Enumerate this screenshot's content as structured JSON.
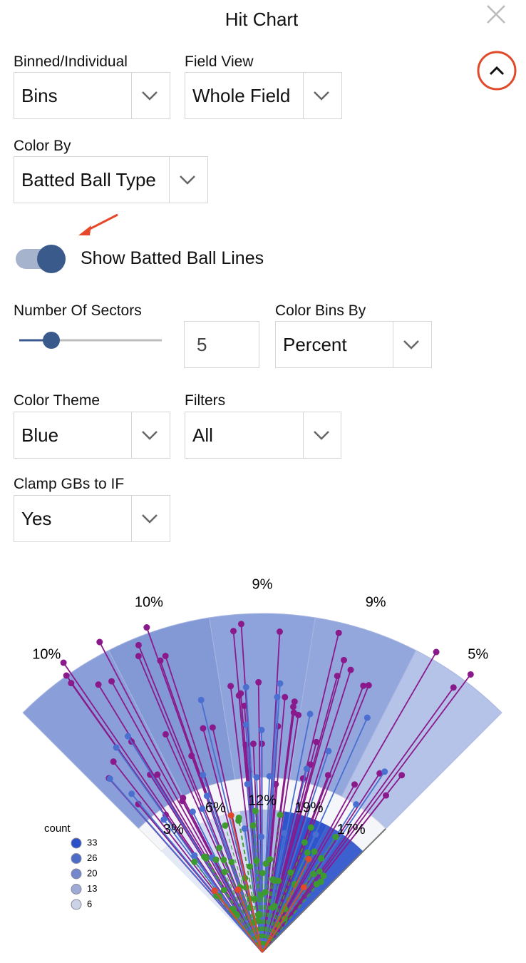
{
  "header": {
    "title": "Hit Chart"
  },
  "controls": {
    "binned": {
      "label": "Binned/Individual",
      "value": "Bins"
    },
    "field_view": {
      "label": "Field View",
      "value": "Whole Field"
    },
    "color_by": {
      "label": "Color By",
      "value": "Batted Ball Type"
    },
    "toggle": {
      "label": "Show Batted Ball Lines"
    },
    "sectors": {
      "label": "Number Of Sectors",
      "value": "5"
    },
    "color_bins_by": {
      "label": "Color Bins By",
      "value": "Percent"
    },
    "color_theme": {
      "label": "Color Theme",
      "value": "Blue"
    },
    "filters": {
      "label": "Filters",
      "value": "All"
    },
    "clamp": {
      "label": "Clamp GBs to IF",
      "value": "Yes"
    }
  },
  "spray_chart": {
    "outfield_labels": [
      "10%",
      "10%",
      "9%",
      "9%",
      "5%"
    ],
    "infield_labels": [
      "3%",
      "6%",
      "12%",
      "19%",
      "17%"
    ],
    "legend": {
      "title": "count",
      "labels": [
        "33",
        "26",
        "20",
        "13",
        "6"
      ]
    }
  }
}
